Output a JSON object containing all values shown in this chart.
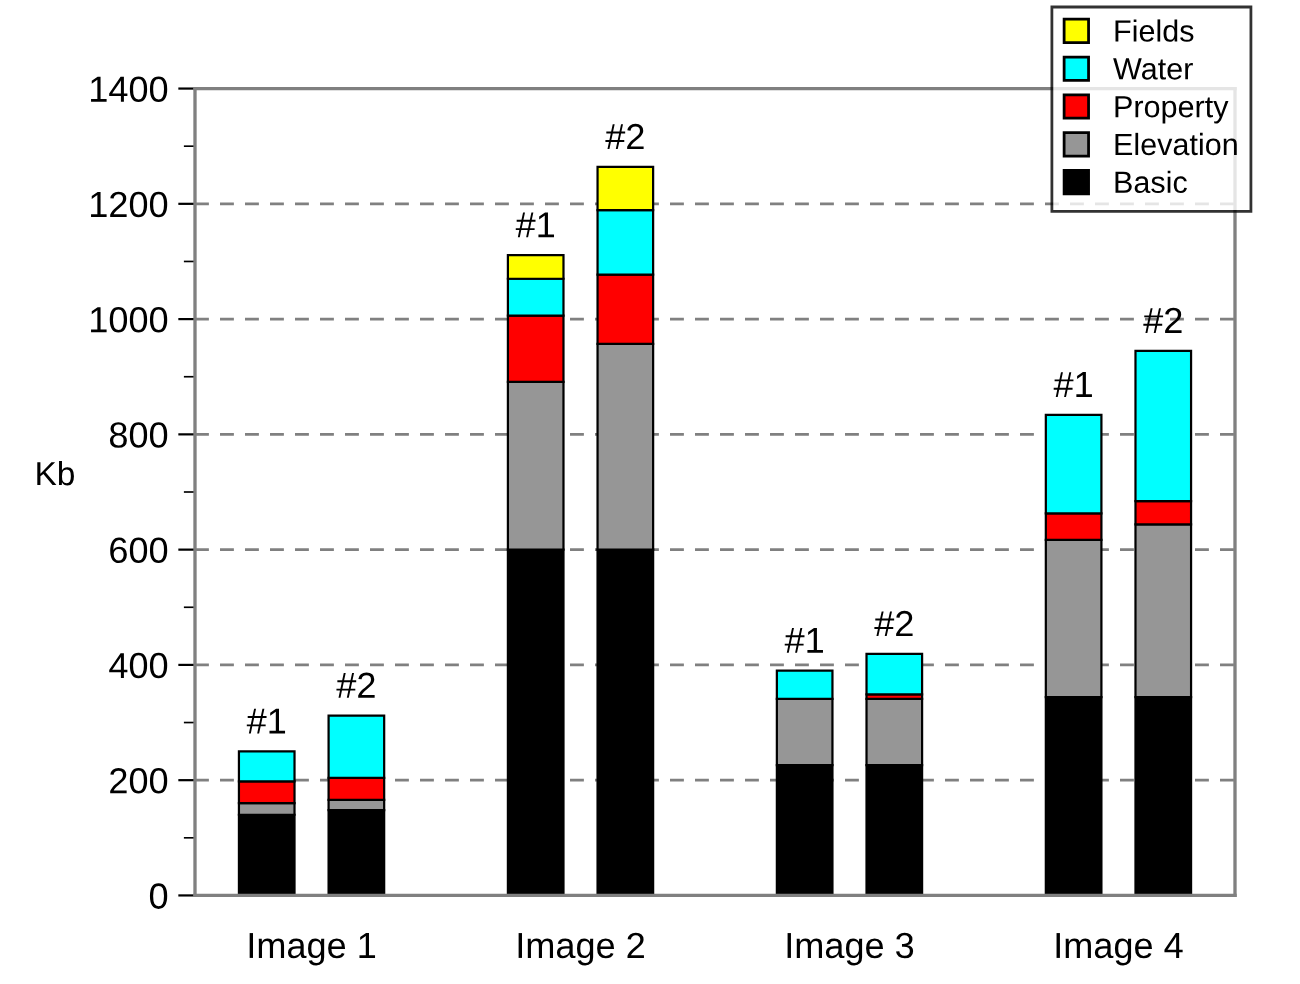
{
  "chart_data": {
    "type": "bar",
    "stacked": true,
    "ylabel": "Kb",
    "categories": [
      "#1",
      "#2",
      null,
      "#1",
      "#2",
      null,
      "#1",
      "#2",
      null,
      "#1",
      "#2"
    ],
    "series": [
      {
        "name": "Basic",
        "color": "#000000",
        "values": [
          140,
          148,
          null,
          600,
          600,
          null,
          226,
          226,
          null,
          344,
          344
        ]
      },
      {
        "name": "Elevation",
        "color": "#969696",
        "values": [
          20,
          18,
          null,
          291,
          357,
          null,
          115,
          115,
          null,
          273,
          300
        ]
      },
      {
        "name": "Property",
        "color": "#ff0000",
        "values": [
          38,
          38,
          null,
          115,
          120,
          null,
          null,
          8,
          null,
          46,
          40
        ]
      },
      {
        "name": "Water",
        "color": "#00ffff",
        "values": [
          52,
          108,
          null,
          64,
          112,
          null,
          49,
          70,
          null,
          171,
          261
        ]
      },
      {
        "name": "Fields",
        "color": "#ffff00",
        "values": [
          null,
          null,
          null,
          41,
          75,
          null,
          null,
          null,
          null,
          null,
          null
        ]
      }
    ],
    "annotations": [
      "Image 1",
      "Image 2",
      "Image 3",
      "Image 4"
    ],
    "ylim": [
      0,
      1400
    ],
    "yticks": [
      0,
      200,
      400,
      600,
      800,
      1000,
      1200,
      1400
    ],
    "grid": "y",
    "legend": "top right"
  }
}
